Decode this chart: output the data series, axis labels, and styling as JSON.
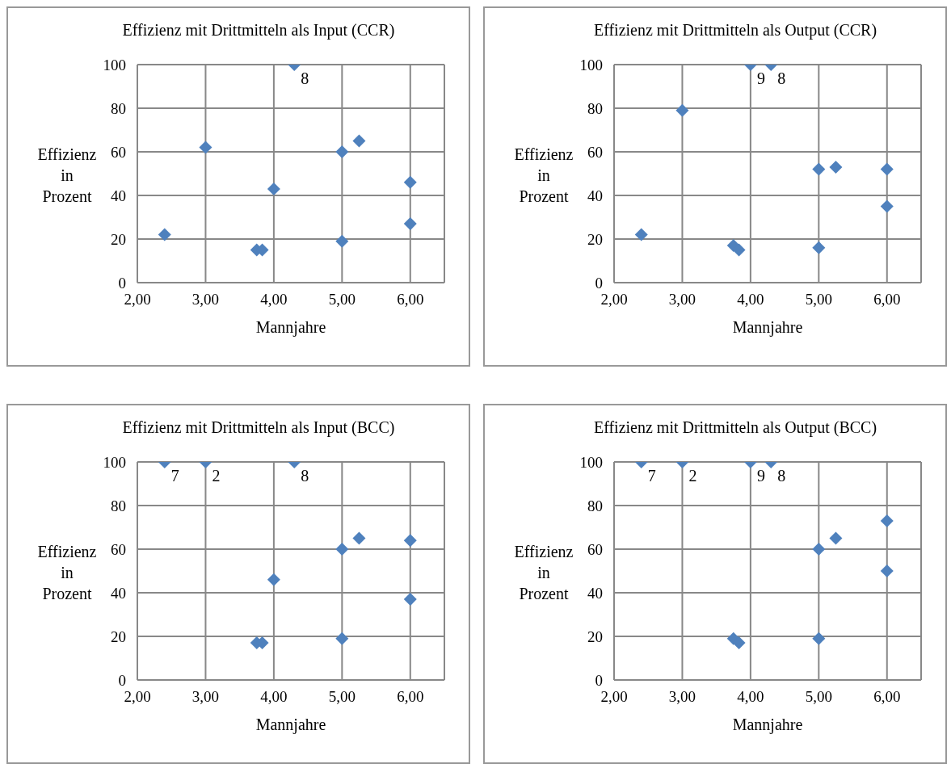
{
  "chart_data": [
    {
      "type": "scatter",
      "title": "Effizienz mit Drittmitteln als Input (CCR)",
      "xlabel": "Mannjahre",
      "ylabel": "Effizienz\nin\nProzent",
      "x": [
        2.4,
        3.0,
        3.75,
        3.83,
        4.0,
        4.3,
        5.0,
        5.0,
        5.25,
        6.0,
        6.0
      ],
      "values": [
        22,
        62,
        15,
        15,
        43,
        100,
        60,
        19,
        65,
        46,
        27
      ],
      "color": "#4f81bd",
      "marker": "diamond",
      "grid": true,
      "legend": false,
      "xlim": [
        2,
        6.5
      ],
      "xticks": [
        {
          "value": 2,
          "label": "2,00"
        },
        {
          "value": 3,
          "label": "3,00"
        },
        {
          "value": 4,
          "label": "4,00"
        },
        {
          "value": 5,
          "label": "5,00"
        },
        {
          "value": 6,
          "label": "6,00"
        }
      ],
      "ylim": [
        0,
        100
      ],
      "yticks": [
        0,
        20,
        40,
        60,
        80,
        100
      ],
      "annotations": [
        {
          "text": "8",
          "x": 4.3,
          "y": 100
        }
      ]
    },
    {
      "type": "scatter",
      "title": "Effizienz mit Drittmitteln als Output (CCR)",
      "xlabel": "Mannjahre",
      "ylabel": "Effizienz\nin\nProzent",
      "x": [
        2.4,
        3.0,
        3.75,
        3.83,
        4.0,
        4.3,
        5.0,
        5.0,
        5.25,
        6.0,
        6.0
      ],
      "values": [
        22,
        79,
        17,
        15,
        100,
        100,
        52,
        16,
        53,
        52,
        35
      ],
      "color": "#4f81bd",
      "marker": "diamond",
      "grid": true,
      "legend": false,
      "xlim": [
        2,
        6.5
      ],
      "xticks": [
        {
          "value": 2,
          "label": "2,00"
        },
        {
          "value": 3,
          "label": "3,00"
        },
        {
          "value": 4,
          "label": "4,00"
        },
        {
          "value": 5,
          "label": "5,00"
        },
        {
          "value": 6,
          "label": "6,00"
        }
      ],
      "ylim": [
        0,
        100
      ],
      "yticks": [
        0,
        20,
        40,
        60,
        80,
        100
      ],
      "annotations": [
        {
          "text": "9",
          "x": 4.0,
          "y": 100
        },
        {
          "text": "8",
          "x": 4.3,
          "y": 100
        }
      ]
    },
    {
      "type": "scatter",
      "title": "Effizienz mit Drittmitteln als Input (BCC)",
      "xlabel": "Mannjahre",
      "ylabel": "Effizienz\nin\nProzent",
      "x": [
        2.4,
        3.0,
        3.75,
        3.83,
        4.0,
        4.3,
        5.0,
        5.0,
        5.25,
        6.0,
        6.0
      ],
      "values": [
        100,
        100,
        17,
        17,
        46,
        100,
        60,
        19,
        65,
        64,
        37
      ],
      "color": "#4f81bd",
      "marker": "diamond",
      "grid": true,
      "legend": false,
      "xlim": [
        2,
        6.5
      ],
      "xticks": [
        {
          "value": 2,
          "label": "2,00"
        },
        {
          "value": 3,
          "label": "3,00"
        },
        {
          "value": 4,
          "label": "4,00"
        },
        {
          "value": 5,
          "label": "5,00"
        },
        {
          "value": 6,
          "label": "6,00"
        }
      ],
      "ylim": [
        0,
        100
      ],
      "yticks": [
        0,
        20,
        40,
        60,
        80,
        100
      ],
      "annotations": [
        {
          "text": "7",
          "x": 2.4,
          "y": 100
        },
        {
          "text": "2",
          "x": 3.0,
          "y": 100
        },
        {
          "text": "8",
          "x": 4.3,
          "y": 100
        }
      ]
    },
    {
      "type": "scatter",
      "title": "Effizienz mit Drittmitteln als Output (BCC)",
      "xlabel": "Mannjahre",
      "ylabel": "Effizienz\nin\nProzent",
      "x": [
        2.4,
        3.0,
        3.75,
        3.83,
        4.0,
        4.3,
        5.0,
        5.0,
        5.25,
        6.0,
        6.0
      ],
      "values": [
        100,
        100,
        19,
        17,
        100,
        100,
        60,
        19,
        65,
        73,
        50
      ],
      "color": "#4f81bd",
      "marker": "diamond",
      "grid": true,
      "legend": false,
      "xlim": [
        2,
        6.5
      ],
      "xticks": [
        {
          "value": 2,
          "label": "2,00"
        },
        {
          "value": 3,
          "label": "3,00"
        },
        {
          "value": 4,
          "label": "4,00"
        },
        {
          "value": 5,
          "label": "5,00"
        },
        {
          "value": 6,
          "label": "6,00"
        }
      ],
      "ylim": [
        0,
        100
      ],
      "yticks": [
        0,
        20,
        40,
        60,
        80,
        100
      ],
      "annotations": [
        {
          "text": "7",
          "x": 2.4,
          "y": 100
        },
        {
          "text": "2",
          "x": 3.0,
          "y": 100
        },
        {
          "text": "9",
          "x": 4.0,
          "y": 100
        },
        {
          "text": "8",
          "x": 4.3,
          "y": 100
        }
      ]
    }
  ]
}
